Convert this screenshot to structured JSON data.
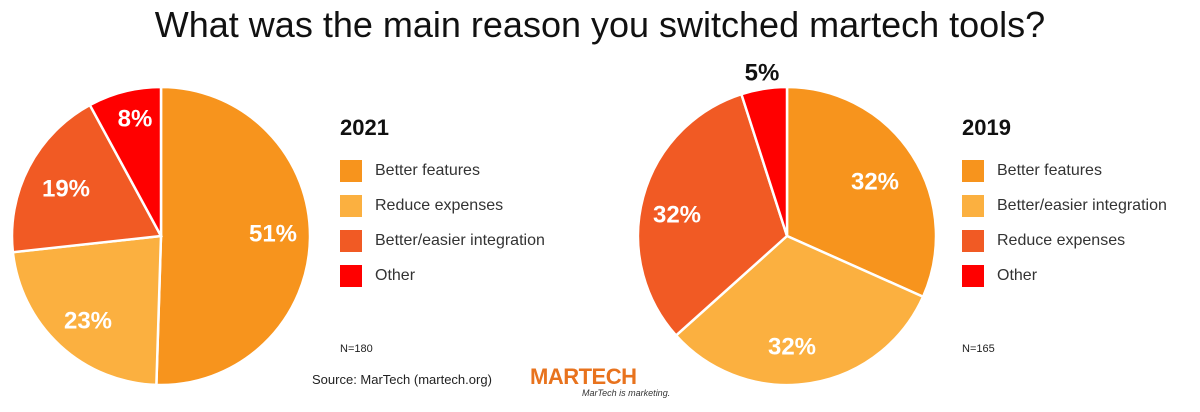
{
  "title": "What was the main reason you switched martech tools?",
  "chart_data": [
    {
      "type": "pie",
      "title": "2021",
      "slices": [
        {
          "label": "Better features",
          "value": 51,
          "display": "51%",
          "color": "#f7941d"
        },
        {
          "label": "Reduce expenses",
          "value": 23,
          "display": "23%",
          "color": "#fbb040"
        },
        {
          "label": "Better/easier integration",
          "value": 19,
          "display": "19%",
          "color": "#f15a24"
        },
        {
          "label": "Other",
          "value": 8,
          "display": "8%",
          "color": "#ff0000"
        }
      ],
      "note": "N=180"
    },
    {
      "type": "pie",
      "title": "2019",
      "slices": [
        {
          "label": "Better features",
          "value": 32,
          "display": "32%",
          "color": "#f7941d"
        },
        {
          "label": "Better/easier integration",
          "value": 32,
          "display": "32%",
          "color": "#fbb040"
        },
        {
          "label": "Reduce expenses",
          "value": 32,
          "display": "32%",
          "color": "#f15a24"
        },
        {
          "label": "Other",
          "value": 5,
          "display": "5%",
          "color": "#ff0000"
        }
      ],
      "note": "N=165"
    }
  ],
  "footer": {
    "source": "Source: MarTech (martech.org)",
    "logo_text": "MARTECH",
    "logo_tagline": "MarTech is marketing."
  }
}
